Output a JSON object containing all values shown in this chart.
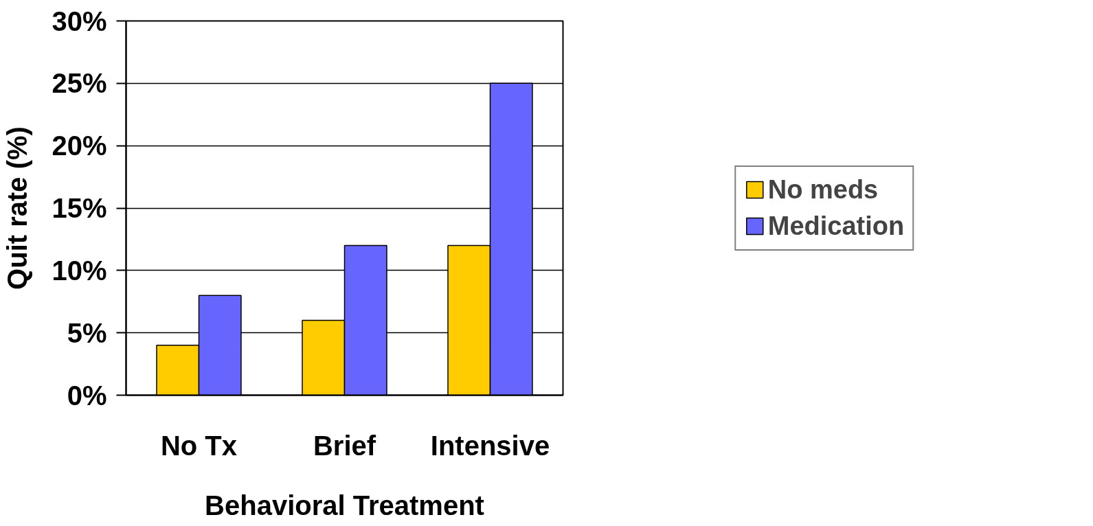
{
  "chart_data": {
    "type": "bar",
    "xlabel": "Behavioral Treatment",
    "ylabel": "Quit rate (%)",
    "categories": [
      "No Tx",
      "Brief",
      "Intensive"
    ],
    "series": [
      {
        "name": "No meds",
        "color": "#ffcc00",
        "values": [
          4,
          6,
          12
        ]
      },
      {
        "name": "Medication",
        "color": "#6666ff",
        "values": [
          8,
          12,
          25
        ]
      }
    ],
    "ylim": [
      0,
      30
    ],
    "yticks": [
      {
        "value": 0,
        "label": "0%"
      },
      {
        "value": 5,
        "label": "5%"
      },
      {
        "value": 10,
        "label": "10%"
      },
      {
        "value": 15,
        "label": "15%"
      },
      {
        "value": 20,
        "label": "20%"
      },
      {
        "value": 25,
        "label": "25%"
      },
      {
        "value": 30,
        "label": "30%"
      }
    ],
    "grid": "y",
    "legend": "right"
  }
}
